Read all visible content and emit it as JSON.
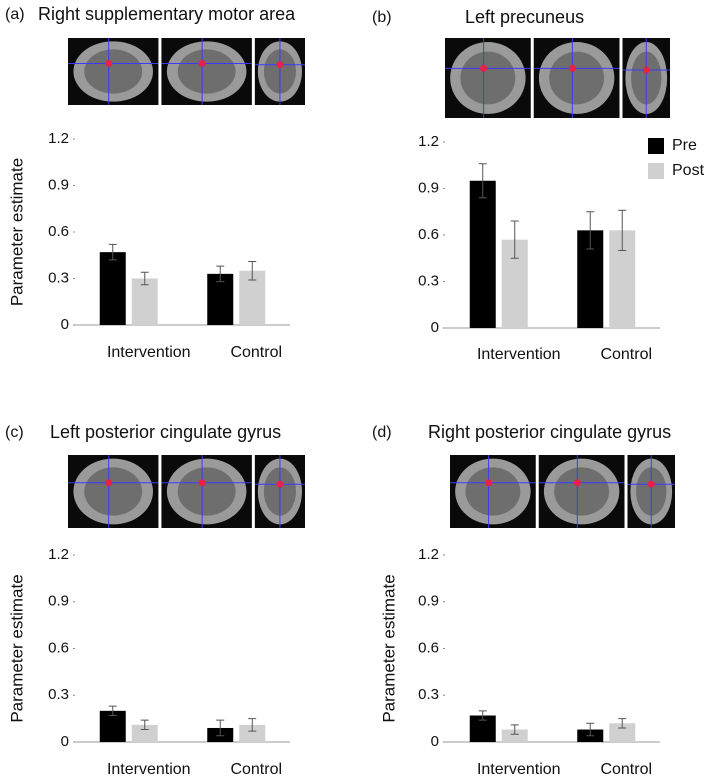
{
  "chart_data": [
    {
      "type": "bar",
      "panel": "(a)",
      "title": "Right supplementary motor area",
      "ylabel": "Parameter estimate",
      "categories": [
        "Intervention",
        "Control"
      ],
      "series": [
        {
          "color": "#000000",
          "values": [
            0.47,
            0.33
          ],
          "errors": [
            0.05,
            0.05
          ]
        },
        {
          "color": "#d0d0d0",
          "values": [
            0.3,
            0.35
          ],
          "errors": [
            0.04,
            0.06
          ]
        }
      ],
      "ylim": [
        0,
        1.2
      ],
      "yticks": [
        0,
        0.3,
        0.6,
        0.9,
        1.2
      ]
    },
    {
      "type": "bar",
      "panel": "(b)",
      "title": "Left precuneus",
      "categories": [
        "Intervention",
        "Control"
      ],
      "series": [
        {
          "name": "Pre",
          "color": "#000000",
          "values": [
            0.95,
            0.63
          ],
          "errors": [
            0.11,
            0.12
          ]
        },
        {
          "name": "Post",
          "color": "#d0d0d0",
          "values": [
            0.57,
            0.63
          ],
          "errors": [
            0.12,
            0.13
          ]
        }
      ],
      "ylim": [
        0,
        1.2
      ],
      "yticks": [
        0,
        0.3,
        0.6,
        0.9,
        1.2
      ],
      "legend": "top-right"
    },
    {
      "type": "bar",
      "panel": "(c)",
      "title": "Left posterior cingulate gyrus",
      "ylabel": "Parameter estimate",
      "categories": [
        "Intervention",
        "Control"
      ],
      "series": [
        {
          "color": "#000000",
          "values": [
            0.2,
            0.09
          ],
          "errors": [
            0.03,
            0.05
          ]
        },
        {
          "color": "#d0d0d0",
          "values": [
            0.11,
            0.11
          ],
          "errors": [
            0.03,
            0.04
          ]
        }
      ],
      "ylim": [
        0,
        1.2
      ],
      "yticks": [
        0,
        0.3,
        0.6,
        0.9,
        1.2
      ]
    },
    {
      "type": "bar",
      "panel": "(d)",
      "title": "Right posterior cingulate gyrus",
      "ylabel": "Parameter estimate",
      "categories": [
        "Intervention",
        "Control"
      ],
      "series": [
        {
          "color": "#000000",
          "values": [
            0.17,
            0.08
          ],
          "errors": [
            0.03,
            0.04
          ]
        },
        {
          "color": "#d0d0d0",
          "values": [
            0.08,
            0.12
          ],
          "errors": [
            0.03,
            0.03
          ]
        }
      ],
      "ylim": [
        0,
        1.2
      ],
      "yticks": [
        0,
        0.3,
        0.6,
        0.9,
        1.2
      ]
    }
  ]
}
